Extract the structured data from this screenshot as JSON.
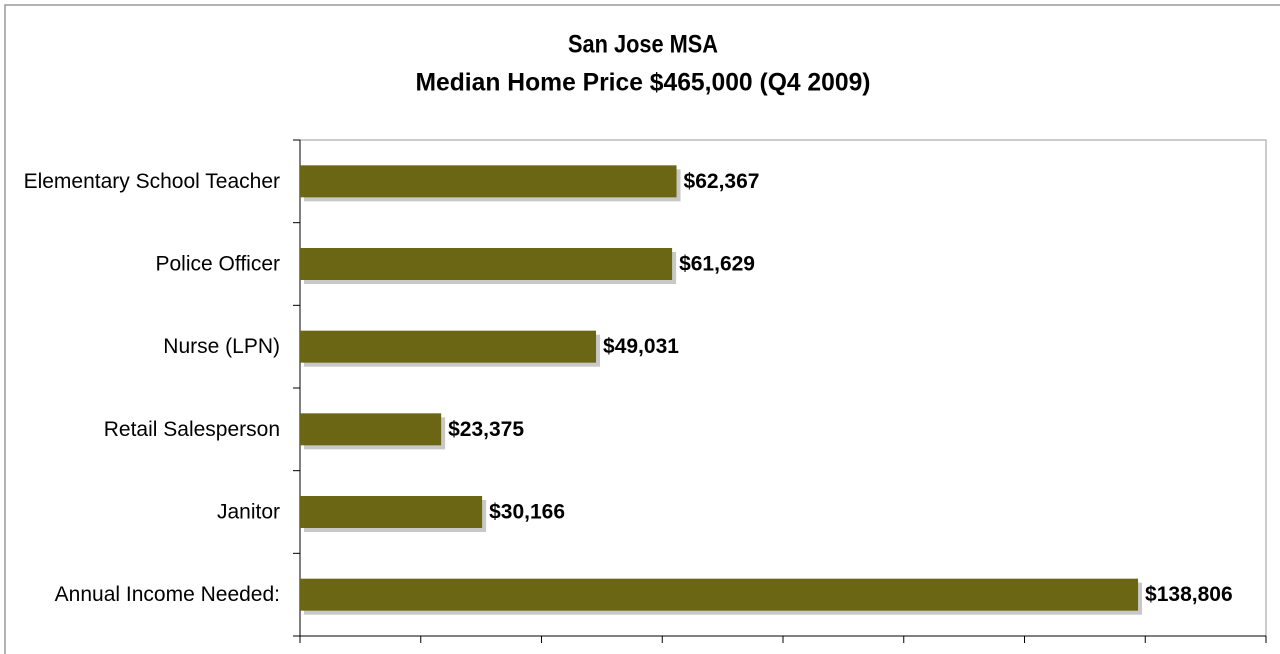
{
  "chart_data": {
    "type": "barh",
    "title": "San Jose MSA",
    "subtitle": "Median Home Price $465,000 (Q4 2009)",
    "categories": [
      "Elementary School Teacher",
      "Police Officer",
      "Nurse (LPN)",
      "Retail Salesperson",
      "Janitor",
      "Annual Income Needed:"
    ],
    "values": [
      62367,
      61629,
      49031,
      23375,
      30166,
      138806
    ],
    "value_labels": [
      "$62,367",
      "$61,629",
      "$49,031",
      "$23,375",
      "$30,166",
      "$138,806"
    ],
    "color": "#6b6614",
    "xlim": [
      0,
      160000
    ],
    "xticks": [
      0,
      20000,
      40000,
      60000,
      80000,
      100000,
      120000,
      140000,
      160000
    ]
  }
}
